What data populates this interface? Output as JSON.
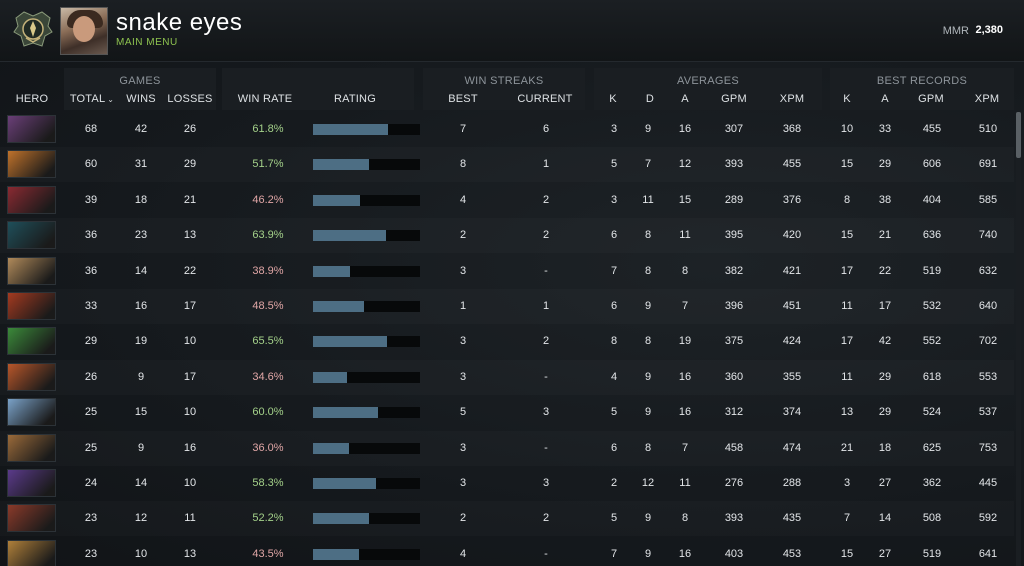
{
  "header": {
    "player_name": "snake eyes",
    "main_menu_label": "MAIN MENU",
    "mmr_label": "MMR",
    "mmr_value": "2,380"
  },
  "groups": {
    "games": "GAMES",
    "win_streaks": "WIN STREAKS",
    "averages": "AVERAGES",
    "best_records": "BEST RECORDS"
  },
  "columns": {
    "hero": "HERO",
    "total": "TOTAL",
    "wins": "WINS",
    "losses": "LOSSES",
    "win_rate": "WIN RATE",
    "rating": "RATING",
    "best": "BEST",
    "current": "CURRENT",
    "avg_k": "K",
    "avg_d": "D",
    "avg_a": "A",
    "avg_gpm": "GPM",
    "avg_xpm": "XPM",
    "best_k": "K",
    "best_a": "A",
    "best_gpm": "GPM",
    "best_xpm": "XPM"
  },
  "rows": [
    {
      "portrait": "#6a3f78",
      "total": "68",
      "wins": "42",
      "losses": "26",
      "win_rate": "61.8%",
      "rating": 0.7,
      "best": "7",
      "current": "6",
      "k": "3",
      "d": "9",
      "a": "16",
      "gpm": "307",
      "xpm": "368",
      "bk": "10",
      "ba": "33",
      "bgpm": "455",
      "bxpm": "510"
    },
    {
      "portrait": "#c0722b",
      "total": "60",
      "wins": "31",
      "losses": "29",
      "win_rate": "51.7%",
      "rating": 0.52,
      "best": "8",
      "current": "1",
      "k": "5",
      "d": "7",
      "a": "12",
      "gpm": "393",
      "xpm": "455",
      "bk": "15",
      "ba": "29",
      "bgpm": "606",
      "bxpm": "691"
    },
    {
      "portrait": "#8a2a32",
      "total": "39",
      "wins": "18",
      "losses": "21",
      "win_rate": "46.2%",
      "rating": 0.44,
      "best": "4",
      "current": "2",
      "k": "3",
      "d": "11",
      "a": "15",
      "gpm": "289",
      "xpm": "376",
      "bk": "8",
      "ba": "38",
      "bgpm": "404",
      "bxpm": "585"
    },
    {
      "portrait": "#1f4f5a",
      "total": "36",
      "wins": "23",
      "losses": "13",
      "win_rate": "63.9%",
      "rating": 0.68,
      "best": "2",
      "current": "2",
      "k": "6",
      "d": "8",
      "a": "11",
      "gpm": "395",
      "xpm": "420",
      "bk": "15",
      "ba": "21",
      "bgpm": "636",
      "bxpm": "740"
    },
    {
      "portrait": "#b08a5a",
      "total": "36",
      "wins": "14",
      "losses": "22",
      "win_rate": "38.9%",
      "rating": 0.35,
      "best": "3",
      "current": "-",
      "k": "7",
      "d": "8",
      "a": "8",
      "gpm": "382",
      "xpm": "421",
      "bk": "17",
      "ba": "22",
      "bgpm": "519",
      "bxpm": "632"
    },
    {
      "portrait": "#a43a20",
      "total": "33",
      "wins": "16",
      "losses": "17",
      "win_rate": "48.5%",
      "rating": 0.48,
      "best": "1",
      "current": "1",
      "k": "6",
      "d": "9",
      "a": "7",
      "gpm": "396",
      "xpm": "451",
      "bk": "11",
      "ba": "17",
      "bgpm": "532",
      "bxpm": "640"
    },
    {
      "portrait": "#3b8a3a",
      "total": "29",
      "wins": "19",
      "losses": "10",
      "win_rate": "65.5%",
      "rating": 0.69,
      "best": "3",
      "current": "2",
      "k": "8",
      "d": "8",
      "a": "19",
      "gpm": "375",
      "xpm": "424",
      "bk": "17",
      "ba": "42",
      "bgpm": "552",
      "bxpm": "702"
    },
    {
      "portrait": "#b8562a",
      "total": "26",
      "wins": "9",
      "losses": "17",
      "win_rate": "34.6%",
      "rating": 0.32,
      "best": "3",
      "current": "-",
      "k": "4",
      "d": "9",
      "a": "16",
      "gpm": "360",
      "xpm": "355",
      "bk": "11",
      "ba": "29",
      "bgpm": "618",
      "bxpm": "553"
    },
    {
      "portrait": "#7aa2c8",
      "total": "25",
      "wins": "15",
      "losses": "10",
      "win_rate": "60.0%",
      "rating": 0.61,
      "best": "5",
      "current": "3",
      "k": "5",
      "d": "9",
      "a": "16",
      "gpm": "312",
      "xpm": "374",
      "bk": "13",
      "ba": "29",
      "bgpm": "524",
      "bxpm": "537"
    },
    {
      "portrait": "#9a6a3a",
      "total": "25",
      "wins": "9",
      "losses": "16",
      "win_rate": "36.0%",
      "rating": 0.34,
      "best": "3",
      "current": "-",
      "k": "6",
      "d": "8",
      "a": "7",
      "gpm": "458",
      "xpm": "474",
      "bk": "21",
      "ba": "18",
      "bgpm": "625",
      "bxpm": "753"
    },
    {
      "portrait": "#5a3a8a",
      "total": "24",
      "wins": "14",
      "losses": "10",
      "win_rate": "58.3%",
      "rating": 0.59,
      "best": "3",
      "current": "3",
      "k": "2",
      "d": "12",
      "a": "11",
      "gpm": "276",
      "xpm": "288",
      "bk": "3",
      "ba": "27",
      "bgpm": "362",
      "bxpm": "445"
    },
    {
      "portrait": "#8a3a2a",
      "total": "23",
      "wins": "12",
      "losses": "11",
      "win_rate": "52.2%",
      "rating": 0.52,
      "best": "2",
      "current": "2",
      "k": "5",
      "d": "9",
      "a": "8",
      "gpm": "393",
      "xpm": "435",
      "bk": "7",
      "ba": "14",
      "bgpm": "508",
      "bxpm": "592"
    },
    {
      "portrait": "#b0803a",
      "total": "23",
      "wins": "10",
      "losses": "13",
      "win_rate": "43.5%",
      "rating": 0.43,
      "best": "4",
      "current": "-",
      "k": "7",
      "d": "9",
      "a": "16",
      "gpm": "403",
      "xpm": "453",
      "bk": "15",
      "ba": "27",
      "bgpm": "519",
      "bxpm": "641"
    }
  ]
}
